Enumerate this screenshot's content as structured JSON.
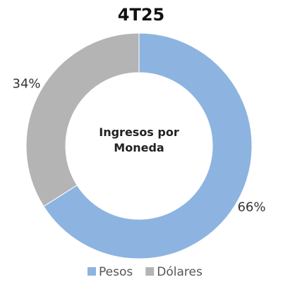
{
  "chart_data": {
    "type": "donut",
    "title": "4T25",
    "center_text": "Ingresos por Moneda",
    "categories": [
      "Pesos",
      "Dólares"
    ],
    "values": [
      66,
      34
    ],
    "value_labels": [
      "66%",
      "34%"
    ],
    "colors": [
      "#8db4e0",
      "#b4b4b4"
    ],
    "legend": "bottom"
  }
}
